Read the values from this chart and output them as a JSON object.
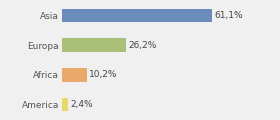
{
  "categories": [
    "Asia",
    "Europa",
    "Africa",
    "America"
  ],
  "values": [
    61.1,
    26.2,
    10.2,
    2.4
  ],
  "labels": [
    "61,1%",
    "26,2%",
    "10,2%",
    "2,4%"
  ],
  "bar_colors": [
    "#6b8cba",
    "#aabf7a",
    "#e8a96b",
    "#e8d96b"
  ],
  "background_color": "#f0f0f0",
  "xlim": [
    0,
    75
  ],
  "label_fontsize": 6.5,
  "tick_fontsize": 6.5,
  "bar_height": 0.45
}
